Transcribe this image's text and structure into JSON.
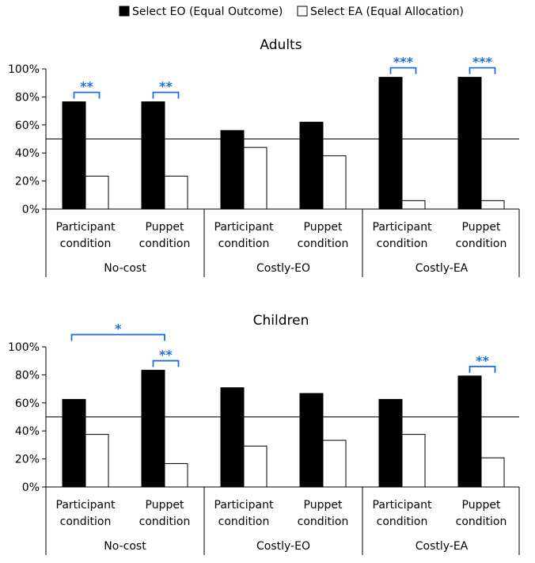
{
  "legend": [
    {
      "label": "Select EO (Equal Outcome)",
      "color": "#000000"
    },
    {
      "label": "Select EA (Equal Allocation)",
      "color": "#ffffff"
    }
  ],
  "chart_data": [
    {
      "type": "bar",
      "title": "Adults",
      "categories": [
        "Participant condition",
        "Puppet condition",
        "Participant condition",
        "Puppet condition",
        "Participant condition",
        "Puppet condition"
      ],
      "category_lines": [
        [
          "Participant",
          "condition"
        ],
        [
          "Puppet",
          "condition"
        ],
        [
          "Participant",
          "condition"
        ],
        [
          "Puppet",
          "condition"
        ],
        [
          "Participant",
          "condition"
        ],
        [
          "Puppet",
          "condition"
        ]
      ],
      "groups": [
        "No-cost",
        "Costly-EO",
        "Costly-EA"
      ],
      "series": [
        {
          "name": "Select EO (Equal Outcome)",
          "values": [
            76.5,
            76.5,
            56,
            62,
            94,
            94
          ]
        },
        {
          "name": "Select EA (Equal Allocation)",
          "values": [
            23.5,
            23.5,
            44,
            38,
            6,
            6
          ]
        }
      ],
      "ylim": [
        0,
        100
      ],
      "yticks": [
        "0%",
        "20%",
        "40%",
        "60%",
        "80%",
        "100%"
      ],
      "reference_line": 50,
      "significance": [
        {
          "label": "**",
          "from": 0,
          "to": 0
        },
        {
          "label": "**",
          "from": 1,
          "to": 1
        },
        {
          "label": "***",
          "from": 4,
          "to": 4
        },
        {
          "label": "***",
          "from": 5,
          "to": 5
        }
      ]
    },
    {
      "type": "bar",
      "title": "Children",
      "categories": [
        "Participant condition",
        "Puppet condition",
        "Participant condition",
        "Puppet condition",
        "Participant condition",
        "Puppet condition"
      ],
      "category_lines": [
        [
          "Participant",
          "condition"
        ],
        [
          "Puppet",
          "condition"
        ],
        [
          "Participant",
          "condition"
        ],
        [
          "Puppet",
          "condition"
        ],
        [
          "Participant",
          "condition"
        ],
        [
          "Puppet",
          "condition"
        ]
      ],
      "groups": [
        "No-cost",
        "Costly-EO",
        "Costly-EA"
      ],
      "series": [
        {
          "name": "Select EO (Equal Outcome)",
          "values": [
            62.5,
            83.3,
            70.8,
            66.7,
            62.5,
            79.2
          ]
        },
        {
          "name": "Select EA (Equal Allocation)",
          "values": [
            37.5,
            16.7,
            29.2,
            33.3,
            37.5,
            20.8
          ]
        }
      ],
      "ylim": [
        0,
        100
      ],
      "yticks": [
        "0%",
        "20%",
        "40%",
        "60%",
        "80%",
        "100%"
      ],
      "reference_line": 50,
      "significance": [
        {
          "label": "*",
          "from": 0,
          "to": 1
        },
        {
          "label": "**",
          "from": 1,
          "to": 1
        },
        {
          "label": "**",
          "from": 5,
          "to": 5
        }
      ]
    }
  ]
}
